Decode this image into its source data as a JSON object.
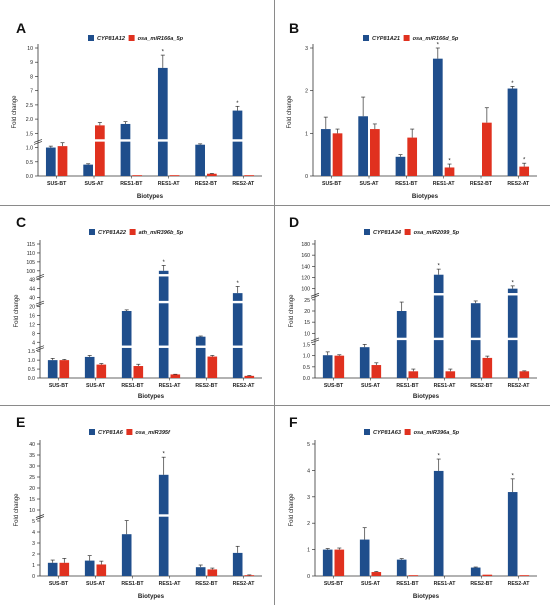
{
  "colors": {
    "blue": "#1f4e8c",
    "red": "#e0311f",
    "axis": "#333333",
    "divider": "#8a8a8a"
  },
  "chart_data": [
    {
      "panel": "A",
      "type": "bar",
      "categories": [
        "SUS-BT",
        "SUS-AT",
        "RES1-BT",
        "RES1-AT",
        "RES2-BT",
        "RES2-AT"
      ],
      "series": [
        {
          "name": "CYP81A12",
          "values": [
            1.0,
            0.4,
            1.83,
            8.6,
            1.1,
            2.3
          ],
          "errors": [
            0.05,
            0.03,
            0.08,
            0.9,
            0.03,
            0.15
          ]
        },
        {
          "name": "osa_miR166a_5p",
          "values": [
            1.05,
            1.78,
            0.01,
            0.01,
            0.08,
            0.01
          ],
          "errors": [
            0.12,
            0.1,
            0.0,
            0.0,
            0.01,
            0.0
          ]
        }
      ],
      "ylabel": "Fold change",
      "xlabel": "Biotypes",
      "yticks": [
        "0.0",
        "0.5",
        "1.0",
        "1.5",
        "2.0",
        "2.5",
        "7",
        "8",
        "9",
        "10"
      ],
      "breaks": [
        2
      ],
      "stars": [
        {
          "series": 0,
          "index": 3
        },
        {
          "series": 0,
          "index": 5
        }
      ]
    },
    {
      "panel": "B",
      "type": "bar",
      "categories": [
        "SUS-BT",
        "SUS-AT",
        "RES1-BT",
        "RES1-AT",
        "RES2-BT",
        "RES2-AT"
      ],
      "series": [
        {
          "name": "CYP81A21",
          "values": [
            1.1,
            1.4,
            0.45,
            2.75,
            0.0,
            2.05
          ],
          "errors": [
            0.28,
            0.45,
            0.05,
            0.25,
            0.0,
            0.05
          ]
        },
        {
          "name": "osa_miR166d_5p",
          "values": [
            1.0,
            1.1,
            0.9,
            0.2,
            1.25,
            0.22
          ],
          "errors": [
            0.1,
            0.12,
            0.2,
            0.08,
            0.35,
            0.08
          ]
        }
      ],
      "ylabel": "Fold change",
      "xlabel": "Biotypes",
      "yticks": [
        "0",
        "1",
        "2",
        "3"
      ],
      "breaks": [],
      "stars": [
        {
          "series": 0,
          "index": 3
        },
        {
          "series": 1,
          "index": 3
        },
        {
          "series": 0,
          "index": 5
        },
        {
          "series": 1,
          "index": 5
        }
      ]
    },
    {
      "panel": "C",
      "type": "bar",
      "categories": [
        "SUS-BT",
        "SUS-AT",
        "RES1-BT",
        "RES1-AT",
        "RES2-BT",
        "RES2-AT"
      ],
      "series": [
        {
          "name": "CYP81A22",
          "values": [
            1.0,
            1.18,
            18,
            100,
            6.5,
            42
          ],
          "errors": [
            0.1,
            0.08,
            0.5,
            3,
            0.3,
            3
          ]
        },
        {
          "name": "ath_miR396b_5p",
          "values": [
            1.0,
            0.75,
            0.67,
            0.2,
            1.2,
            0.12
          ],
          "errors": [
            0.04,
            0.06,
            0.1,
            0.01,
            0.06,
            0.02
          ]
        }
      ],
      "ylabel": "Fold change",
      "xlabel": "Biotypes",
      "yticks": [
        "0.0",
        "0.5",
        "1.0",
        "1.5",
        "4",
        "8",
        "12",
        "16",
        "20",
        "40",
        "44",
        "48",
        "100",
        "105",
        "110",
        "115"
      ],
      "breaks": [
        3,
        8,
        11
      ],
      "stars": [
        {
          "series": 0,
          "index": 3
        },
        {
          "series": 0,
          "index": 5
        }
      ]
    },
    {
      "panel": "D",
      "type": "bar",
      "categories": [
        "SUS-BT",
        "SUS-AT",
        "RES1-BT",
        "RES1-AT",
        "RES2-BT",
        "RES2-AT"
      ],
      "series": [
        {
          "name": "CYP81A34",
          "values": [
            1.02,
            1.38,
            20,
            125,
            23.5,
            100
          ],
          "errors": [
            0.15,
            0.2,
            4,
            10,
            1,
            5
          ]
        },
        {
          "name": "osa_miR2099_5p",
          "values": [
            1.0,
            0.58,
            0.3,
            0.3,
            0.9,
            0.3
          ],
          "errors": [
            0.04,
            0.1,
            0.1,
            0.1,
            0.08,
            0.02
          ]
        }
      ],
      "ylabel": "Fold change",
      "xlabel": "Biotypes",
      "yticks": [
        "0.0",
        "0.5",
        "1.0",
        "1.5",
        "10",
        "15",
        "20",
        "25",
        "100",
        "120",
        "140",
        "160",
        "180"
      ],
      "breaks": [
        3,
        7
      ],
      "stars": [
        {
          "series": 0,
          "index": 3
        },
        {
          "series": 0,
          "index": 5
        }
      ]
    },
    {
      "panel": "E",
      "type": "bar",
      "categories": [
        "SUS-BT",
        "SUS-AT",
        "RES1-BT",
        "RES1-AT",
        "RES2-BT",
        "RES2-AT"
      ],
      "series": [
        {
          "name": "CYP81A6",
          "values": [
            1.2,
            1.4,
            3.8,
            26,
            0.8,
            2.1
          ],
          "errors": [
            0.25,
            0.45,
            1.4,
            8,
            0.2,
            0.6
          ]
        },
        {
          "name": "osa_miR395f",
          "values": [
            1.2,
            1.05,
            0.0,
            0.0,
            0.6,
            0.05
          ],
          "errors": [
            0.4,
            0.3,
            0.0,
            0.0,
            0.12,
            0.05
          ]
        }
      ],
      "ylabel": "Fold change",
      "xlabel": "Biotypes",
      "yticks": [
        "0",
        "1",
        "2",
        "3",
        "4",
        "5",
        "10",
        "15",
        "20",
        "25",
        "30",
        "35",
        "40"
      ],
      "breaks": [
        5
      ],
      "stars": [
        {
          "series": 0,
          "index": 3
        }
      ]
    },
    {
      "panel": "F",
      "type": "bar",
      "categories": [
        "SUS-BT",
        "SUS-AT",
        "RES1-BT",
        "RES1-AT",
        "RES2-BT",
        "RES2-AT"
      ],
      "series": [
        {
          "name": "CYP81A63",
          "values": [
            1.0,
            1.38,
            0.62,
            3.98,
            0.32,
            3.18
          ],
          "errors": [
            0.04,
            0.45,
            0.04,
            0.45,
            0.02,
            0.5
          ]
        },
        {
          "name": "osa_miR396a_5p",
          "values": [
            1.0,
            0.15,
            0.02,
            0.0,
            0.05,
            0.02
          ],
          "errors": [
            0.06,
            0.02,
            0.0,
            0.0,
            0.0,
            0.0
          ]
        }
      ],
      "ylabel": "Fold change",
      "xlabel": "Biotypes",
      "yticks": [
        "0",
        "1",
        "2",
        "3",
        "4",
        "5"
      ],
      "breaks": [],
      "stars": [
        {
          "series": 0,
          "index": 3
        },
        {
          "series": 0,
          "index": 5
        }
      ]
    }
  ]
}
